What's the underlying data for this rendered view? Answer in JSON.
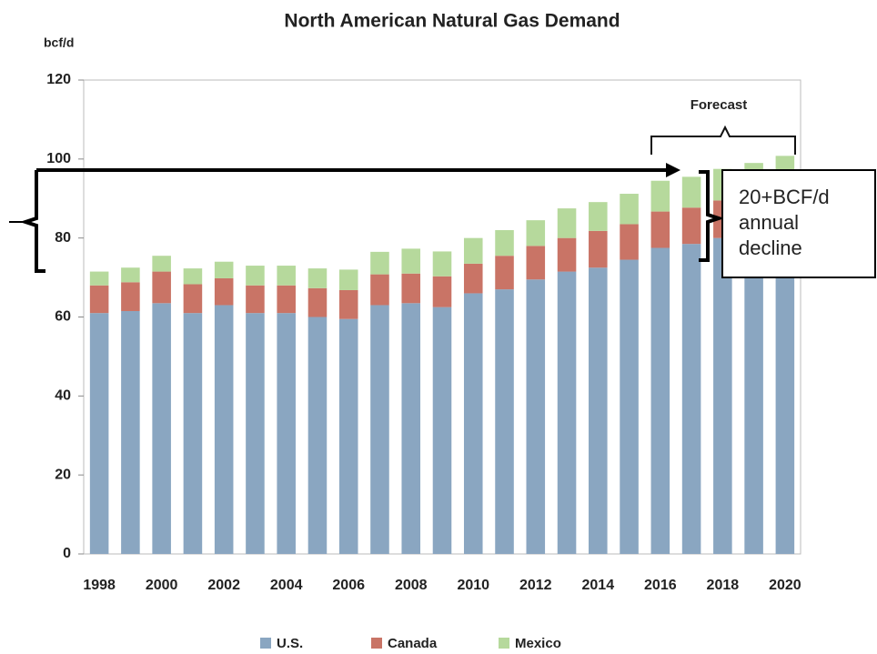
{
  "chart_data": {
    "type": "stacked_bar",
    "title": "North American Natural Gas Demand",
    "y_label": "bcf/d",
    "categories": [
      "1998",
      null,
      "2000",
      null,
      "2002",
      null,
      "2004",
      null,
      "2006",
      null,
      "2008",
      null,
      "2010",
      null,
      "2012",
      null,
      "2014",
      null,
      "2016",
      null,
      "2018",
      null,
      "2020"
    ],
    "series": [
      {
        "name": "U.S.",
        "color": "#8aa6c1",
        "values": [
          61,
          61.5,
          63.5,
          61,
          63,
          61,
          61,
          60,
          59.5,
          63,
          63.5,
          62.5,
          66,
          67,
          69.5,
          71.5,
          72.5,
          74.5,
          77.5,
          78.5,
          80,
          81,
          82
        ]
      },
      {
        "name": "Canada",
        "color": "#c97466",
        "values": [
          7,
          7.3,
          8,
          7.3,
          6.8,
          7,
          7,
          7.3,
          7.3,
          7.8,
          7.5,
          7.8,
          7.5,
          8.5,
          8.5,
          8.5,
          9.3,
          9,
          9.2,
          9.2,
          9.5,
          9.5,
          10
        ]
      },
      {
        "name": "Mexico",
        "color": "#b6d99c",
        "values": [
          3.5,
          3.7,
          4,
          4,
          4.2,
          5,
          5,
          5,
          5.2,
          5.7,
          6.3,
          6.3,
          6.5,
          6.5,
          6.5,
          7.5,
          7.3,
          7.7,
          7.8,
          7.8,
          8,
          8.5,
          8.8
        ]
      }
    ],
    "ylim": [
      0,
      120
    ],
    "yticks": [
      0,
      20,
      40,
      60,
      80,
      100,
      120
    ],
    "grid": false,
    "legend": "bottom",
    "annotations": {
      "forecast": "Forecast",
      "decline": [
        "20+BCF/d",
        "annual",
        "decline"
      ]
    }
  }
}
